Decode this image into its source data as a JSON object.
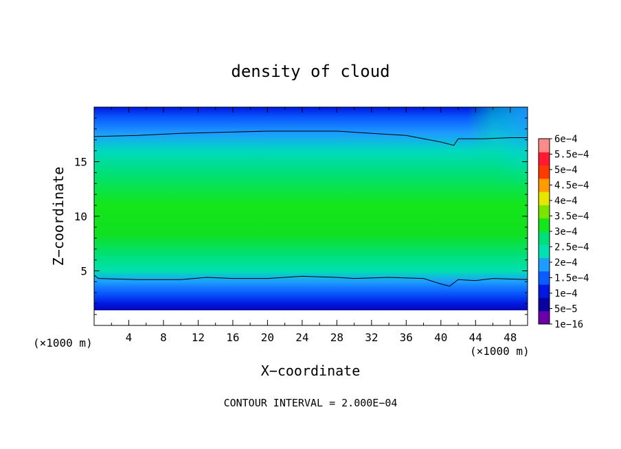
{
  "chart_data": {
    "type": "heatmap",
    "title": "density of cloud",
    "xlabel": "X−coordinate",
    "ylabel": "Z−coordinate",
    "x_unit": "(×1000 m)",
    "y_unit": "(×1000 m)",
    "xlim": [
      0,
      50
    ],
    "ylim": [
      0,
      20
    ],
    "x_ticks": [
      4,
      8,
      12,
      16,
      20,
      24,
      28,
      32,
      36,
      40,
      44,
      48
    ],
    "y_ticks": [
      5,
      10,
      15
    ],
    "footer": "CONTOUR INTERVAL = 2.000E−04",
    "colorbar": {
      "levels": [
        "1e−16",
        "5e−5",
        "1e−4",
        "1.5e−4",
        "2e−4",
        "2.5e−4",
        "3e−4",
        "3.5e−4",
        "4e−4",
        "4.5e−4",
        "5e−4",
        "5.5e−4",
        "6e−4"
      ],
      "colors": [
        "#6a00a8",
        "#0a00a0",
        "#0018e0",
        "#0a5cff",
        "#1e9cff",
        "#00e0b0",
        "#00e07a",
        "#14e61a",
        "#7ae600",
        "#e6e600",
        "#ff9a00",
        "#ff3a00",
        "#ff1a30",
        "#ff8a8a"
      ]
    },
    "contour_levels_drawn": [
      0.0002
    ],
    "contour_upper": [
      [
        0,
        17.3
      ],
      [
        5,
        17.4
      ],
      [
        10,
        17.6
      ],
      [
        15,
        17.7
      ],
      [
        20,
        17.8
      ],
      [
        25,
        17.8
      ],
      [
        28,
        17.8
      ],
      [
        32,
        17.6
      ],
      [
        36,
        17.4
      ],
      [
        38,
        17.1
      ],
      [
        40,
        16.8
      ],
      [
        41.5,
        16.5
      ],
      [
        42,
        17.1
      ],
      [
        45,
        17.1
      ],
      [
        48,
        17.2
      ],
      [
        50,
        17.2
      ]
    ],
    "contour_lower": [
      [
        0,
        4.6
      ],
      [
        0.5,
        4.3
      ],
      [
        5,
        4.2
      ],
      [
        10,
        4.2
      ],
      [
        13,
        4.4
      ],
      [
        16,
        4.3
      ],
      [
        20,
        4.3
      ],
      [
        24,
        4.5
      ],
      [
        28,
        4.4
      ],
      [
        30,
        4.3
      ],
      [
        34,
        4.4
      ],
      [
        38,
        4.3
      ],
      [
        40,
        3.8
      ],
      [
        41,
        3.6
      ],
      [
        42,
        4.2
      ],
      [
        44,
        4.1
      ],
      [
        46,
        4.3
      ],
      [
        50,
        4.2
      ]
    ]
  }
}
